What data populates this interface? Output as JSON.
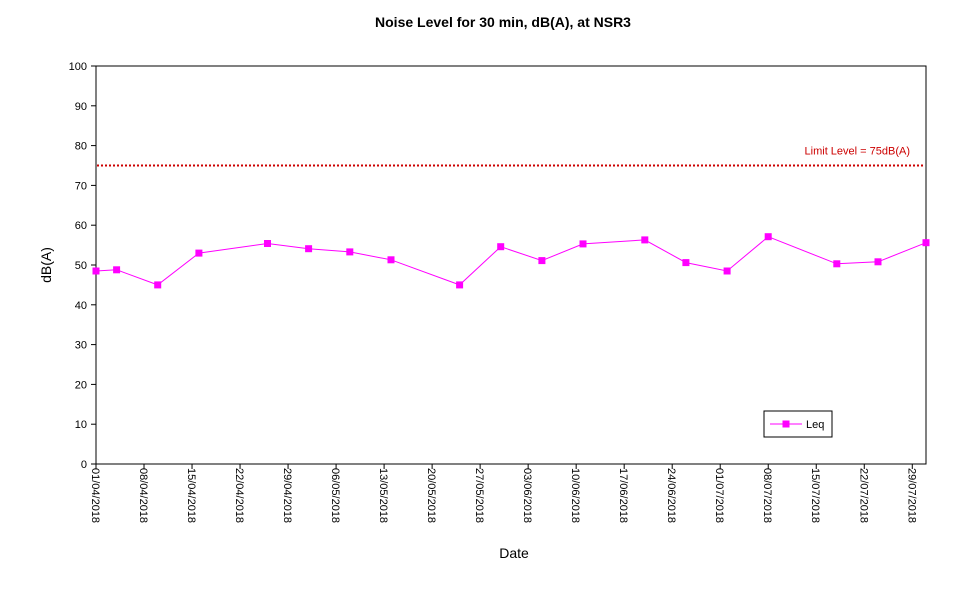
{
  "chart_data": {
    "type": "line",
    "title": "Noise Level for 30 min, dB(A), at NSR3",
    "xlabel": "Date",
    "ylabel": "dB(A)",
    "ylim": [
      0,
      100
    ],
    "yticks": [
      0,
      10,
      20,
      30,
      40,
      50,
      60,
      70,
      80,
      90,
      100
    ],
    "xlim": [
      "2018-04-01",
      "2018-07-31"
    ],
    "xticks": [
      "01/04/2018",
      "08/04/2018",
      "15/04/2018",
      "22/04/2018",
      "29/04/2018",
      "06/05/2018",
      "13/05/2018",
      "20/05/2018",
      "27/05/2018",
      "03/06/2018",
      "10/06/2018",
      "17/06/2018",
      "24/06/2018",
      "01/07/2018",
      "08/07/2018",
      "15/07/2018",
      "22/07/2018",
      "29/07/2018"
    ],
    "grid": false,
    "legend": {
      "position": "bottom-right",
      "entries": [
        "Leq"
      ]
    },
    "series": [
      {
        "name": "Leq",
        "color": "#ff00ff",
        "x": [
          "2018-04-01",
          "2018-04-04",
          "2018-04-10",
          "2018-04-16",
          "2018-04-26",
          "2018-05-02",
          "2018-05-08",
          "2018-05-14",
          "2018-05-24",
          "2018-05-30",
          "2018-06-05",
          "2018-06-11",
          "2018-06-20",
          "2018-06-26",
          "2018-07-02",
          "2018-07-08",
          "2018-07-18",
          "2018-07-24",
          "2018-07-31"
        ],
        "values": [
          48.5,
          48.8,
          45.0,
          53.0,
          55.4,
          54.1,
          53.3,
          51.3,
          45.0,
          54.6,
          51.1,
          55.3,
          56.3,
          50.6,
          48.5,
          57.1,
          50.3,
          50.8,
          55.6
        ]
      }
    ],
    "reference_lines": [
      {
        "label": "Limit Level  = 75dB(A)",
        "value": 75,
        "color": "#cc0000"
      }
    ]
  }
}
